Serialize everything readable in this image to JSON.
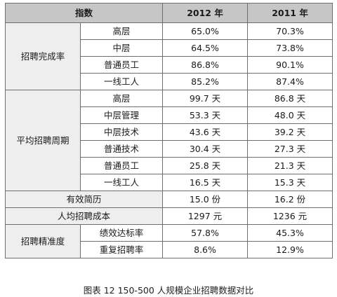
{
  "headers": [
    "指数",
    "2012 年",
    "2011 年"
  ],
  "groups": [
    {
      "name": "招聘完成率",
      "rows": [
        {
          "label": "高层",
          "y2012": "65.0%",
          "y2011": "70.3%"
        },
        {
          "label": "中层",
          "y2012": "64.5%",
          "y2011": "73.8%"
        },
        {
          "label": "普通员工",
          "y2012": "86.8%",
          "y2011": "90.1%"
        },
        {
          "label": "一线工人",
          "y2012": "85.2%",
          "y2011": "87.4%"
        }
      ]
    },
    {
      "name": "平均招聘周期",
      "rows": [
        {
          "label": "高层",
          "y2012": "99.7 天",
          "y2011": "86.8 天"
        },
        {
          "label": "中层管理",
          "y2012": "53.3 天",
          "y2011": "48.0 天"
        },
        {
          "label": "中层技术",
          "y2012": "43.6 天",
          "y2011": "39.2 天"
        },
        {
          "label": "普通技术",
          "y2012": "30.4 天",
          "y2011": "27.3 天"
        },
        {
          "label": "普通员工",
          "y2012": "25.8 天",
          "y2011": "21.3 天"
        },
        {
          "label": "一线工人",
          "y2012": "16.5 天",
          "y2011": "15.3 天"
        }
      ]
    },
    {
      "name": "有效简历",
      "single": true,
      "y2012": "15.0 份",
      "y2011": "16.2 份"
    },
    {
      "name": "人均招聘成本",
      "single": true,
      "y2012": "1297 元",
      "y2011": "1236 元"
    },
    {
      "name": "招聘精准度",
      "rows": [
        {
          "label": "绩效达标率",
          "y2012": "57.8%",
          "y2011": "45.3%"
        },
        {
          "label": "重复招聘率",
          "y2012": "8.6%",
          "y2011": "12.9%"
        }
      ]
    }
  ],
  "caption": "图表 12   150-500 人规模企业招聘数据对比"
}
